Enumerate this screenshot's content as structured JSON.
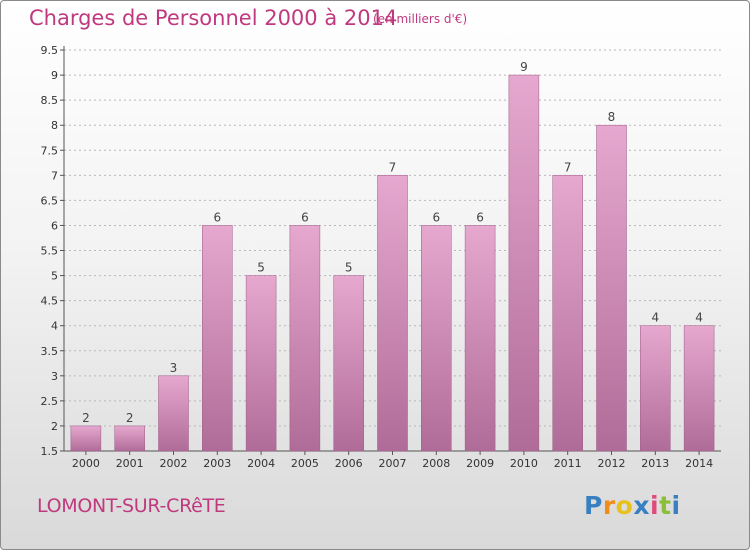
{
  "header": {
    "title": "Charges de Personnel 2000 à 2014",
    "subtitle": "(en milliers d'€)"
  },
  "footer": {
    "commune": "LOMONT-SUR-CRêTE",
    "logo_letters": [
      "P",
      "r",
      "o",
      "x",
      "i",
      "t",
      "i"
    ],
    "logo_colors": [
      "#3a7fc1",
      "#f08c1a",
      "#e8c21c",
      "#3a7fc1",
      "#e04a7a",
      "#8bbf3a",
      "#3a7fc1"
    ]
  },
  "colors": {
    "accent": "#c0397f",
    "bar_top": "#e6a8cf",
    "bar_bottom": "#b06c98"
  },
  "chart_data": {
    "type": "bar",
    "title": "Charges de Personnel 2000 à 2014",
    "subtitle": "(en milliers d'€)",
    "categories": [
      "2000",
      "2001",
      "2002",
      "2003",
      "2004",
      "2005",
      "2006",
      "2007",
      "2008",
      "2009",
      "2010",
      "2011",
      "2012",
      "2013",
      "2014"
    ],
    "values": [
      2,
      2,
      3,
      6,
      5,
      6,
      5,
      7,
      6,
      6,
      9,
      7,
      8,
      4,
      4
    ],
    "ylim": [
      1.5,
      9.5
    ],
    "yticks": [
      "1.5",
      "2",
      "2.5",
      "3",
      "3.5",
      "4",
      "4.5",
      "5",
      "5.5",
      "6",
      "6.5",
      "7",
      "7.5",
      "8",
      "8.5",
      "9",
      "9.5"
    ],
    "grid": true,
    "xlabel": "",
    "ylabel": ""
  }
}
